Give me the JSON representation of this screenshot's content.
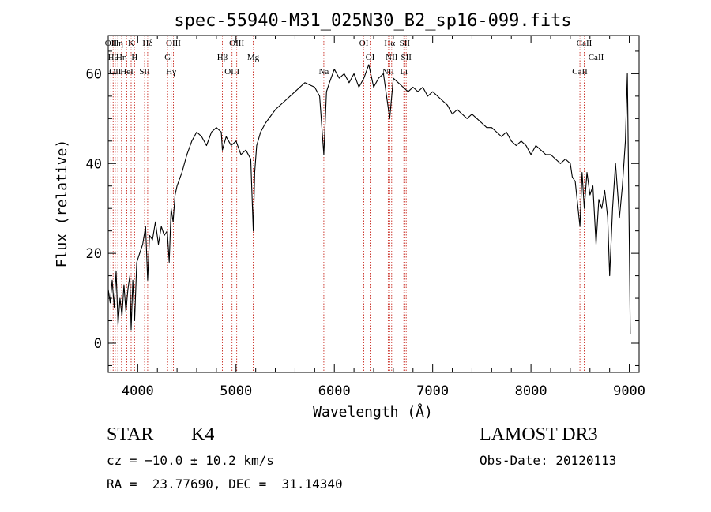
{
  "chart_data": {
    "type": "line",
    "title": "spec-55940-M31_025N30_B2_sp16-099.fits",
    "xlabel": "Wavelength (Å)",
    "ylabel": "Flux (relative)",
    "xlim": [
      3700,
      9100
    ],
    "ylim": [
      -6.5,
      68.5
    ],
    "x_ticks": [
      4000,
      5000,
      6000,
      7000,
      8000,
      9000
    ],
    "y_ticks": [
      0,
      20,
      40,
      60
    ],
    "grid": false,
    "series": [
      {
        "x": [
          3700,
          3720,
          3740,
          3760,
          3780,
          3800,
          3820,
          3840,
          3860,
          3880,
          3900,
          3920,
          3933,
          3950,
          3968,
          3990,
          4020,
          4050,
          4080,
          4101,
          4120,
          4150,
          4180,
          4210,
          4240,
          4270,
          4300,
          4320,
          4340,
          4360,
          4380,
          4400,
          4450,
          4500,
          4550,
          4600,
          4650,
          4700,
          4750,
          4800,
          4850,
          4861,
          4900,
          4950,
          5000,
          5050,
          5100,
          5150,
          5175,
          5190,
          5210,
          5250,
          5300,
          5400,
          5500,
          5600,
          5700,
          5800,
          5850,
          5893,
          5920,
          5950,
          6000,
          6050,
          6100,
          6150,
          6200,
          6250,
          6300,
          6350,
          6370,
          6400,
          6450,
          6500,
          6563,
          6600,
          6650,
          6700,
          6750,
          6800,
          6850,
          6900,
          6950,
          7000,
          7050,
          7100,
          7150,
          7200,
          7250,
          7300,
          7350,
          7400,
          7450,
          7500,
          7550,
          7600,
          7650,
          7700,
          7750,
          7800,
          7850,
          7900,
          7950,
          8000,
          8050,
          8100,
          8150,
          8200,
          8250,
          8300,
          8350,
          8400,
          8420,
          8450,
          8498,
          8520,
          8542,
          8570,
          8600,
          8630,
          8662,
          8690,
          8720,
          8750,
          8780,
          8800,
          8830,
          8860,
          8900,
          8930,
          8960,
          8980,
          9000,
          9010
        ],
        "y": [
          12,
          9,
          14,
          8,
          16,
          4,
          10,
          6,
          13,
          7,
          12,
          15,
          3,
          14,
          5,
          18,
          20,
          22,
          26,
          14,
          24,
          23,
          27,
          22,
          26,
          24,
          25,
          18,
          30,
          27,
          33,
          35,
          38,
          42,
          45,
          47,
          46,
          44,
          47,
          48,
          47,
          43,
          46,
          44,
          45,
          42,
          43,
          41,
          25,
          38,
          44,
          47,
          49,
          52,
          54,
          56,
          58,
          57,
          55,
          42,
          56,
          58,
          61,
          59,
          60,
          58,
          60,
          57,
          59,
          62,
          60,
          57,
          59,
          60,
          50,
          59,
          58,
          57,
          56,
          57,
          56,
          57,
          55,
          56,
          55,
          54,
          53,
          51,
          52,
          51,
          50,
          51,
          50,
          49,
          48,
          48,
          47,
          46,
          47,
          45,
          44,
          45,
          44,
          42,
          44,
          43,
          42,
          42,
          41,
          40,
          41,
          40,
          37,
          36,
          26,
          38,
          30,
          38,
          33,
          35,
          22,
          32,
          30,
          34,
          28,
          15,
          30,
          40,
          28,
          35,
          45,
          60,
          22,
          2
        ]
      }
    ],
    "lines": [
      {
        "wave": 3727,
        "label": "OII"
      },
      {
        "wave": 3750,
        "label": "Hθ"
      },
      {
        "wave": 3771,
        "label": "OII"
      },
      {
        "wave": 3798,
        "label": "Hη"
      },
      {
        "wave": 3835,
        "label": "Hη"
      },
      {
        "wave": 3889,
        "label": "HeI"
      },
      {
        "wave": 3933,
        "label": "K"
      },
      {
        "wave": 3968,
        "label": "H"
      },
      {
        "wave": 4070,
        "label": "SII"
      },
      {
        "wave": 4101,
        "label": "Hδ"
      },
      {
        "wave": 4304,
        "label": "G"
      },
      {
        "wave": 4340,
        "label": "Hγ"
      },
      {
        "wave": 4363,
        "label": "OIII"
      },
      {
        "wave": 4861,
        "label": "Hβ"
      },
      {
        "wave": 4959,
        "label": "OIII"
      },
      {
        "wave": 5007,
        "label": "OIII"
      },
      {
        "wave": 5175,
        "label": "Mg"
      },
      {
        "wave": 5893,
        "label": "Na"
      },
      {
        "wave": 6300,
        "label": "OI"
      },
      {
        "wave": 6364,
        "label": "OI"
      },
      {
        "wave": 6548,
        "label": "NII"
      },
      {
        "wave": 6563,
        "label": "Hα"
      },
      {
        "wave": 6583,
        "label": "NII"
      },
      {
        "wave": 6707,
        "label": "Li"
      },
      {
        "wave": 6716,
        "label": "SII"
      },
      {
        "wave": 6731,
        "label": "SII"
      },
      {
        "wave": 8498,
        "label": "CaII"
      },
      {
        "wave": 8542,
        "label": "CaII"
      },
      {
        "wave": 8662,
        "label": "CaII"
      }
    ]
  },
  "info": {
    "class": "STAR",
    "subclass": "K4",
    "survey": "LAMOST DR3",
    "cz": "cz = −10.0 ± 10.2 km/s",
    "obs_date": "Obs-Date: 20120113",
    "radec": "RA =  23.77690, DEC =  31.14340"
  }
}
